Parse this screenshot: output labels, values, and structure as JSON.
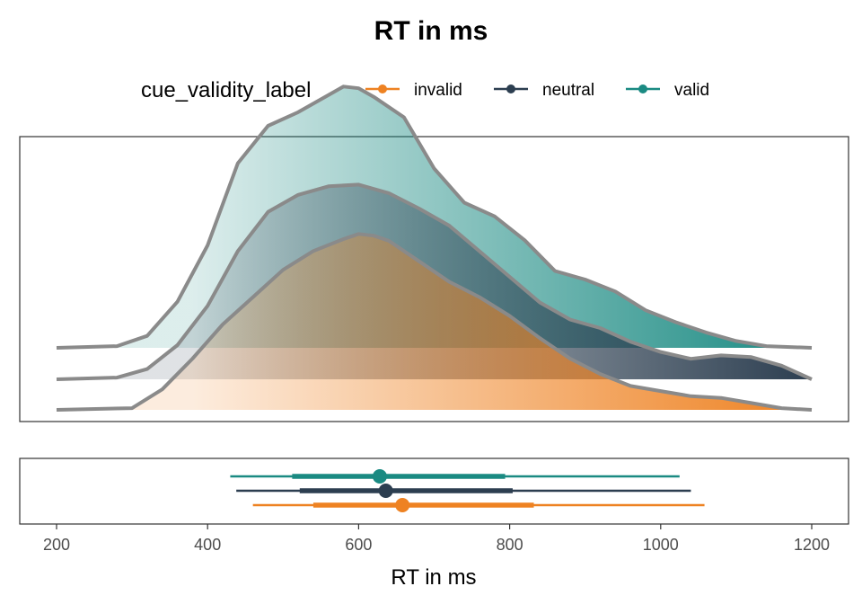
{
  "chart_data": {
    "type": "area",
    "title": "RT in ms",
    "legend": {
      "title": "cue_validity_label",
      "position": "top",
      "items": [
        {
          "label": "invalid",
          "color": "#ee8222"
        },
        {
          "label": "neutral",
          "color": "#2c3e50"
        },
        {
          "label": "valid",
          "color": "#1a8a82"
        }
      ]
    },
    "xlabel": "RT in ms",
    "xlim": [
      200,
      1200
    ],
    "xticks": [
      200,
      400,
      600,
      800,
      1000,
      1200
    ],
    "grid": false,
    "density_panel": {
      "series": [
        {
          "name": "invalid",
          "color": "#ee8222",
          "x": [
            200,
            300,
            340,
            380,
            420,
            460,
            500,
            540,
            580,
            600,
            620,
            640,
            680,
            720,
            760,
            800,
            840,
            880,
            920,
            960,
            1000,
            1040,
            1080,
            1120,
            1160,
            1200
          ],
          "density": [
            0.0,
            0.01,
            0.12,
            0.3,
            0.5,
            0.66,
            0.82,
            0.93,
            1.0,
            1.03,
            1.02,
            0.99,
            0.87,
            0.75,
            0.66,
            0.55,
            0.42,
            0.3,
            0.21,
            0.14,
            0.11,
            0.08,
            0.07,
            0.04,
            0.01,
            0.0
          ]
        },
        {
          "name": "neutral",
          "color": "#2c3e50",
          "x": [
            200,
            280,
            320,
            360,
            400,
            440,
            480,
            520,
            560,
            600,
            640,
            680,
            720,
            760,
            800,
            840,
            880,
            920,
            960,
            1000,
            1040,
            1080,
            1120,
            1160,
            1200
          ],
          "density": [
            0.0,
            0.01,
            0.06,
            0.2,
            0.43,
            0.75,
            0.98,
            1.08,
            1.13,
            1.14,
            1.09,
            1.0,
            0.9,
            0.75,
            0.6,
            0.45,
            0.35,
            0.3,
            0.22,
            0.16,
            0.12,
            0.14,
            0.13,
            0.08,
            0.0
          ]
        },
        {
          "name": "valid",
          "color": "#1a8a82",
          "x": [
            200,
            280,
            320,
            360,
            400,
            440,
            480,
            520,
            560,
            580,
            600,
            620,
            660,
            700,
            740,
            780,
            820,
            860,
            900,
            940,
            980,
            1020,
            1060,
            1100,
            1140,
            1200
          ],
          "density": [
            0.0,
            0.01,
            0.07,
            0.27,
            0.6,
            1.08,
            1.3,
            1.38,
            1.48,
            1.53,
            1.52,
            1.47,
            1.35,
            1.05,
            0.85,
            0.77,
            0.63,
            0.45,
            0.4,
            0.33,
            0.22,
            0.15,
            0.09,
            0.04,
            0.01,
            0.0
          ]
        }
      ]
    },
    "interval_panel": {
      "series": [
        {
          "name": "invalid",
          "color": "#ee8222",
          "point": 658,
          "inner": [
            540,
            832
          ],
          "outer": [
            460,
            1058
          ]
        },
        {
          "name": "neutral",
          "color": "#2c3e50",
          "point": 636,
          "inner": [
            522,
            804
          ],
          "outer": [
            438,
            1040
          ]
        },
        {
          "name": "valid",
          "color": "#1a8a82",
          "point": 628,
          "inner": [
            512,
            794
          ],
          "outer": [
            430,
            1025
          ]
        }
      ]
    }
  }
}
